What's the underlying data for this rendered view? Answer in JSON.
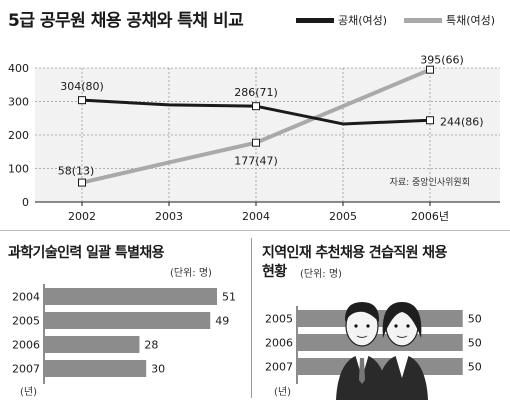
{
  "line_chart": {
    "title": "5급 공무원 채용 공채와 특채 비교",
    "source": "자료: 중앙인사위원회",
    "x_labels": [
      "2002",
      "2003",
      "2004",
      "2005",
      "2006년"
    ],
    "y_ticks": [
      "0",
      "100",
      "200",
      "300",
      "400"
    ],
    "point_labels": {
      "gong_2002": "304(80)",
      "gong_2004": "286(71)",
      "gong_2006": "244(86)",
      "teuk_2002": "58(13)",
      "teuk_2004": "177(47)",
      "teuk_2006": "395(66)"
    }
  },
  "science_chart": {
    "title": "과학기술인력 일괄 특별채용",
    "unit": "(단위: 명)",
    "year_unit": "(년)"
  },
  "regional_chart": {
    "title_line1": "지역인재 추천채용 견습직원 채용",
    "title_line2": "현황",
    "unit": "(단위: 명)",
    "year_unit": "(년)"
  },
  "chart_data": [
    {
      "type": "line",
      "title": "5급 공무원 채용 공채와 특채 비교",
      "x": [
        "2002",
        "2003",
        "2004",
        "2005",
        "2006년"
      ],
      "ylim": [
        0,
        400
      ],
      "grid": true,
      "legend_position": "top-right",
      "series": [
        {
          "name": "공채(여성)",
          "color": "#1a1a1a",
          "values": [
            304,
            290,
            286,
            233,
            244
          ]
        },
        {
          "name": "특채(여성)",
          "color": "#a9a9a9",
          "values": [
            58,
            118,
            177,
            286,
            395
          ]
        }
      ]
    },
    {
      "type": "bar",
      "orientation": "horizontal",
      "title": "과학기술인력 일괄 특별채용",
      "categories": [
        "2004",
        "2005",
        "2006",
        "2007"
      ],
      "values": [
        51,
        49,
        28,
        30
      ],
      "color": "#8c8c8c"
    },
    {
      "type": "bar",
      "orientation": "horizontal",
      "title": "지역인재 추천채용 견습직원 채용 현황",
      "categories": [
        "2005",
        "2006",
        "2007"
      ],
      "values": [
        50,
        50,
        50
      ],
      "color": "#8c8c8c"
    }
  ]
}
